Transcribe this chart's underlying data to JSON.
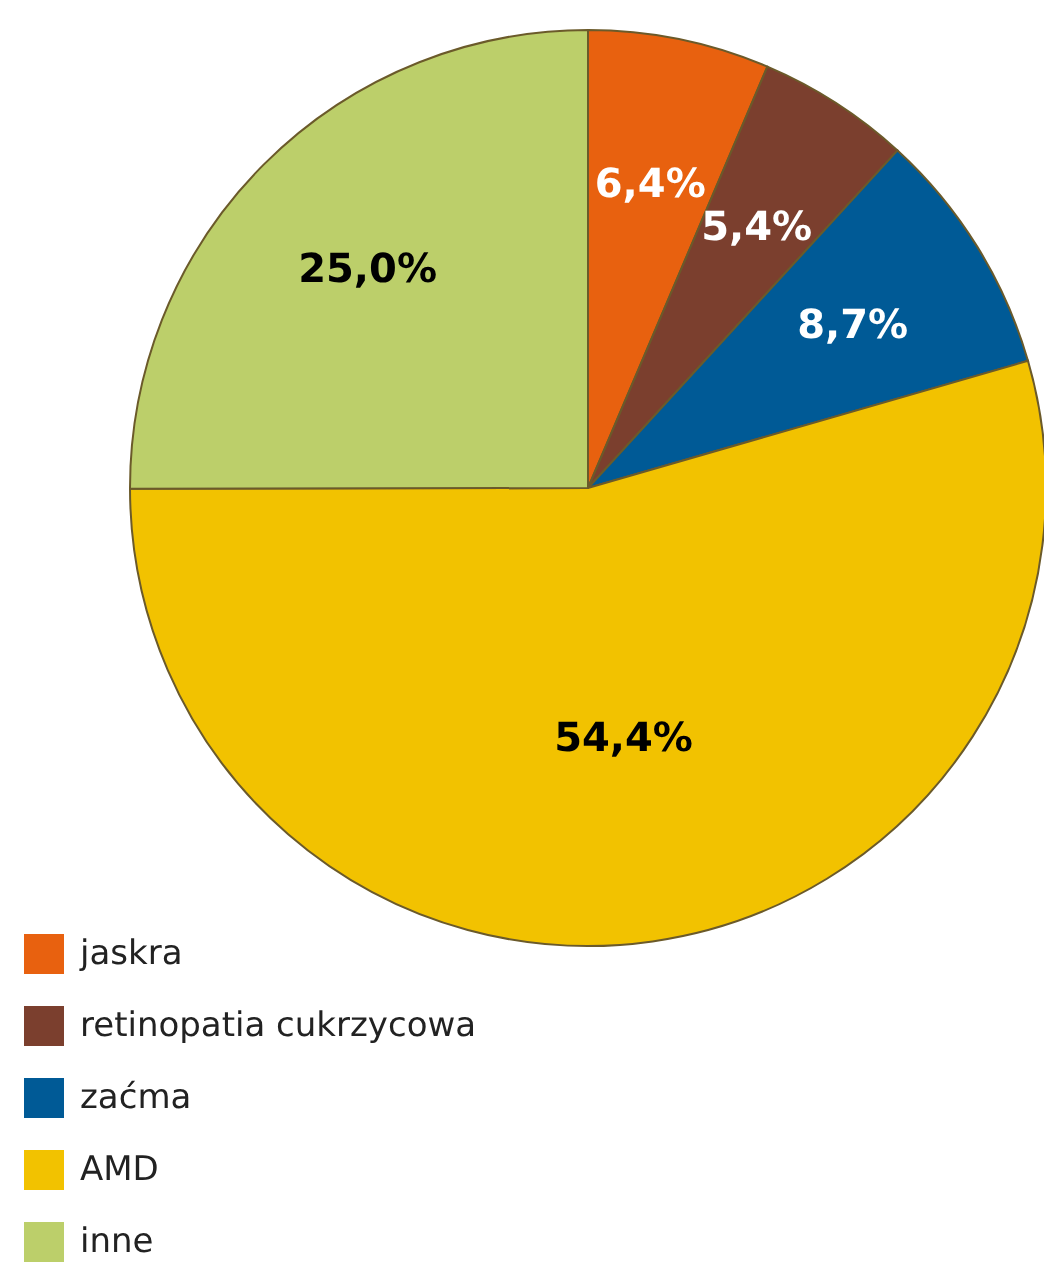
{
  "chart_data": {
    "type": "pie",
    "categories": [
      "jaskra",
      "retinopatia cukrzycowa",
      "zaćma",
      "AMD",
      "inne"
    ],
    "values": [
      6.4,
      5.4,
      8.7,
      54.4,
      25.0
    ],
    "colors": [
      "#e8610f",
      "#7b3f2e",
      "#005a96",
      "#f2c200",
      "#bccf6a"
    ],
    "value_labels": [
      "6,4%",
      "5,4%",
      "8,7%",
      "54,4%",
      "25,0%"
    ],
    "legend": "bottom left"
  }
}
